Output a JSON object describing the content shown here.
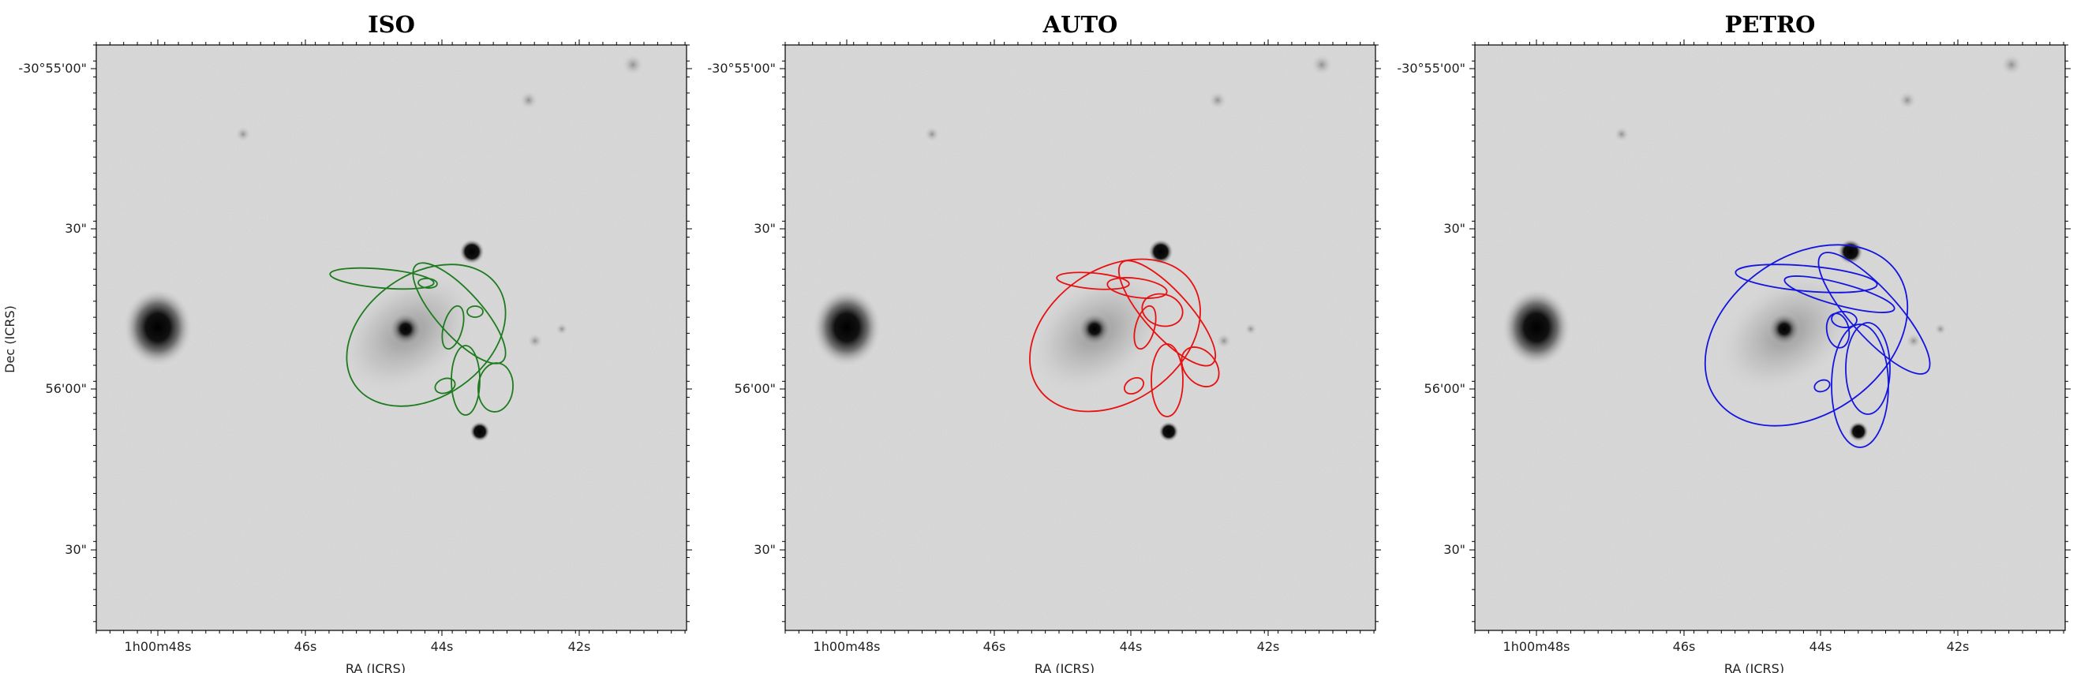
{
  "figure": {
    "y_axis_label": "Dec (ICRS)",
    "x_axis_label": "RA (ICRS)",
    "y_ticks": [
      "-30°55'00\"",
      "30\"",
      "56'00\"",
      "30\""
    ],
    "x_ticks": [
      "1h00m48s",
      "46s",
      "44s",
      "42s"
    ]
  },
  "panels": [
    {
      "id": "iso",
      "title": "ISO",
      "aperture_color": "#1e7b1e",
      "aperture_count": 9
    },
    {
      "id": "auto",
      "title": "AUTO",
      "aperture_color": "#e81010",
      "aperture_count": 9
    },
    {
      "id": "petro",
      "title": "PETRO",
      "aperture_color": "#1515e0",
      "aperture_count": 9
    }
  ]
}
